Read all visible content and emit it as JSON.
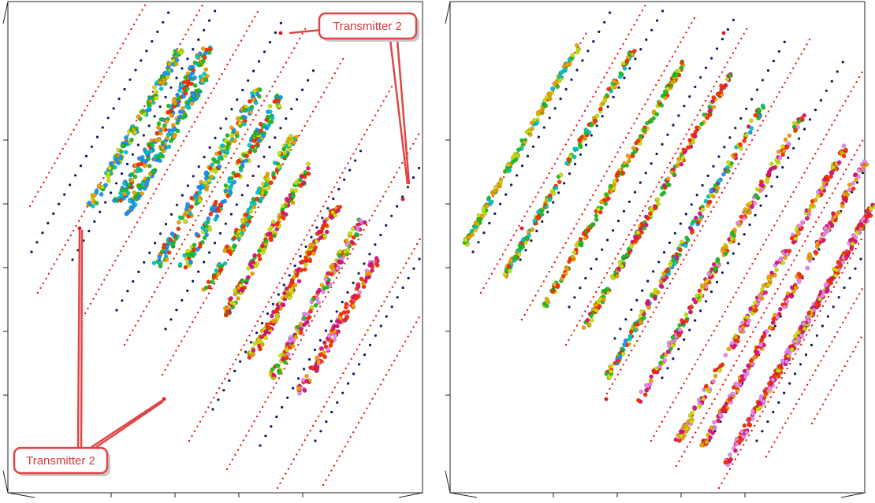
{
  "chart_data": [
    {
      "type": "scatter",
      "panel": "left",
      "title": "",
      "xlabel": "",
      "ylabel": "",
      "grid": false,
      "annotations": [
        {
          "label": "Transmitter 2",
          "target": "top-right transmitter points"
        },
        {
          "label": "Transmitter 2",
          "target": "left and bottom transmitter points"
        }
      ],
      "series_colors": {
        "transmitter_lines": "#e01818",
        "receiver_dots": "#0a1a5c",
        "measurements": [
          "#1e90ff",
          "#00c8c8",
          "#20c020",
          "#c8e000",
          "#f0a000",
          "#ff3000",
          "#e0147a",
          "#ee82ee"
        ]
      }
    },
    {
      "type": "scatter",
      "panel": "right",
      "title": "",
      "xlabel": "",
      "ylabel": "",
      "grid": false,
      "series_colors": {
        "transmitter_lines": "#e01818",
        "receiver_dots": "#0a1a5c",
        "measurements": [
          "#1e90ff",
          "#00c8c8",
          "#20c020",
          "#c8e000",
          "#f0a000",
          "#ff3000",
          "#e0147a",
          "#ee82ee"
        ]
      }
    }
  ],
  "callouts": [
    {
      "text": "Transmitter 2"
    },
    {
      "text": "Transmitter 2"
    }
  ]
}
